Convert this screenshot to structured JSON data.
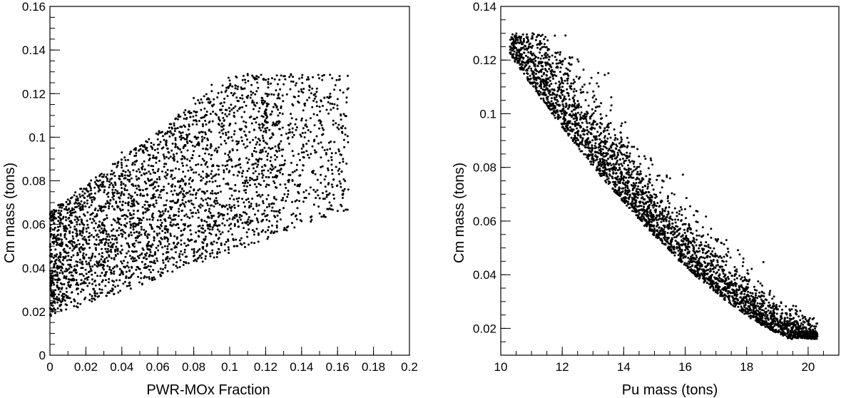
{
  "chart_data": [
    {
      "type": "scatter",
      "title": "",
      "xlabel": "PWR-MOx Fraction",
      "ylabel": "Cm mass (tons)",
      "xlim": [
        0,
        0.2
      ],
      "ylim": [
        0,
        0.16
      ],
      "xticks": [
        "0",
        "0.02",
        "0.04",
        "0.06",
        "0.08",
        "0.1",
        "0.12",
        "0.14",
        "0.16",
        "0.18",
        "0.2"
      ],
      "yticks": [
        "0",
        "0.02",
        "0.04",
        "0.06",
        "0.08",
        "0.1",
        "0.12",
        "0.14",
        "0.16"
      ],
      "grid": false,
      "legend": "none",
      "marker_color": "#000000",
      "n_points": 3500,
      "trend": "lower envelope rises from 0.017 at x=0 to 0.066 at x=0.165; upper envelope rises from 0.065 at x=0 to 0.128 near x=0.1-0.13; points thin out beyond x=0.12",
      "data_ranges": {
        "x": [
          0,
          0.165
        ],
        "y": [
          0.017,
          0.129
        ]
      },
      "points_sample": [
        [
          0.001,
          0.021
        ],
        [
          0.002,
          0.055
        ],
        [
          0.004,
          0.038
        ],
        [
          0.006,
          0.062
        ],
        [
          0.008,
          0.028
        ],
        [
          0.012,
          0.045
        ],
        [
          0.015,
          0.068
        ],
        [
          0.018,
          0.033
        ],
        [
          0.022,
          0.056
        ],
        [
          0.025,
          0.072
        ],
        [
          0.03,
          0.041
        ],
        [
          0.035,
          0.078
        ],
        [
          0.04,
          0.093
        ],
        [
          0.045,
          0.06
        ],
        [
          0.05,
          0.084
        ],
        [
          0.055,
          0.052
        ],
        [
          0.06,
          0.099
        ],
        [
          0.065,
          0.071
        ],
        [
          0.07,
          0.104
        ],
        [
          0.075,
          0.058
        ],
        [
          0.08,
          0.118
        ],
        [
          0.085,
          0.09
        ],
        [
          0.09,
          0.124
        ],
        [
          0.095,
          0.075
        ],
        [
          0.1,
          0.126
        ],
        [
          0.105,
          0.098
        ],
        [
          0.11,
          0.129
        ],
        [
          0.12,
          0.12
        ],
        [
          0.125,
          0.079
        ],
        [
          0.13,
          0.128
        ],
        [
          0.135,
          0.1
        ],
        [
          0.14,
          0.121
        ],
        [
          0.145,
          0.077
        ],
        [
          0.15,
          0.114
        ],
        [
          0.155,
          0.067
        ],
        [
          0.16,
          0.113
        ],
        [
          0.163,
          0.09
        ],
        [
          0.165,
          0.116
        ],
        [
          0.166,
          0.076
        ]
      ]
    },
    {
      "type": "scatter",
      "title": "",
      "xlabel": "Pu mass (tons)",
      "ylabel": "Cm mass (tons)",
      "xlim": [
        10,
        21
      ],
      "ylim": [
        0.01,
        0.14
      ],
      "xticks": [
        "10",
        "12",
        "14",
        "16",
        "18",
        "20"
      ],
      "yticks": [
        "0.02",
        "0.04",
        "0.06",
        "0.08",
        "0.1",
        "0.12",
        "0.14"
      ],
      "grid": false,
      "legend": "none",
      "marker_color": "#000000",
      "n_points": 3500,
      "trend": "tight decreasing band: Cm falls from about 0.125 at Pu=10.3 to about 0.017 at Pu=20.3, band width about 0.01-0.02 with upward scatter",
      "data_ranges": {
        "x": [
          10.3,
          20.3
        ],
        "y": [
          0.017,
          0.129
        ]
      },
      "points_sample": [
        [
          10.3,
          0.125
        ],
        [
          10.5,
          0.129
        ],
        [
          10.8,
          0.118
        ],
        [
          11.0,
          0.128
        ],
        [
          11.3,
          0.108
        ],
        [
          11.7,
          0.1
        ],
        [
          12.0,
          0.096
        ],
        [
          12.3,
          0.091
        ],
        [
          12.6,
          0.086
        ],
        [
          13.0,
          0.081
        ],
        [
          13.4,
          0.075
        ],
        [
          13.8,
          0.07
        ],
        [
          14.2,
          0.065
        ],
        [
          14.6,
          0.06
        ],
        [
          15.0,
          0.056
        ],
        [
          15.4,
          0.077
        ],
        [
          15.8,
          0.05
        ],
        [
          16.2,
          0.046
        ],
        [
          16.6,
          0.042
        ],
        [
          17.0,
          0.053
        ],
        [
          17.4,
          0.036
        ],
        [
          17.8,
          0.033
        ],
        [
          18.2,
          0.029
        ],
        [
          18.6,
          0.026
        ],
        [
          19.0,
          0.023
        ],
        [
          19.4,
          0.021
        ],
        [
          19.8,
          0.019
        ],
        [
          20.3,
          0.017
        ]
      ]
    }
  ]
}
